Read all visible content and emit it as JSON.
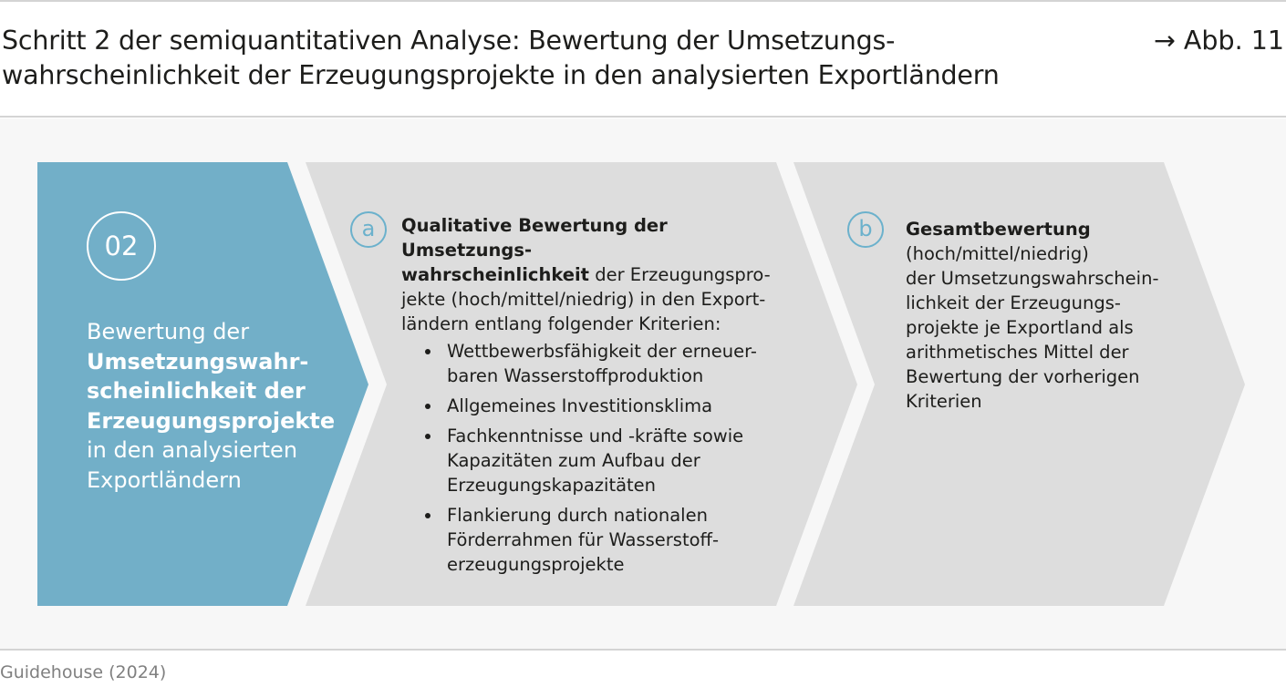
{
  "header": {
    "title_line1": "Schritt 2 der semiquantitativen Analyse: Bewertung der Umsetzungs-",
    "title_line2": "wahrscheinlichkeit der Erzeugungsprojekte in den analysierten Exportländern",
    "figure_ref": "→ Abb. 11"
  },
  "step": {
    "number": "02",
    "text_pre": "Bewertung der",
    "text_bold_1": "Umsetzungswahr-",
    "text_bold_2": "scheinlichkeit der",
    "text_bold_3": "Erzeugungsprojekte",
    "text_post_1": "in den analysierten",
    "text_post_2": "Exportländern"
  },
  "panel_a": {
    "letter": "a",
    "bold_1": "Qualitative Bewertung der Umsetzungs-",
    "bold_2": "wahrscheinlichkeit",
    "rest_1": " der Erzeugungspro-",
    "rest_2": "jekte (hoch/mittel/niedrig) in den Export-",
    "rest_3": "ländern entlang folgender Kriterien:",
    "criteria": [
      {
        "line1": "Wettbewerbsfähigkeit der erneuer-",
        "line2": "baren Wasserstoffproduktion",
        "line3": ""
      },
      {
        "line1": "Allgemeines Investitionsklima",
        "line2": "",
        "line3": ""
      },
      {
        "line1": "Fachkenntnisse und -kräfte sowie",
        "line2": "Kapazitäten zum Aufbau der",
        "line3": "Erzeugungskapazitäten"
      },
      {
        "line1": "Flankierung durch nationalen",
        "line2": "Förderrahmen für Wasserstoff-",
        "line3": "erzeugungsprojekte"
      }
    ]
  },
  "panel_b": {
    "letter": "b",
    "bold": "Gesamtbewertung",
    "lines": [
      "(hoch/mittel/niedrig)",
      "der Umsetzungswahrschein-",
      "lichkeit der Erzeugungs-",
      "projekte je Exportland als",
      "arithmetisches Mittel der",
      "Bewertung der vorherigen",
      "Kriterien"
    ]
  },
  "source": "Guidehouse (2024)",
  "colors": {
    "step_blue": "#72afc8",
    "panel_gray": "#dddddd",
    "accent_circle": "#6bb1cc",
    "background": "#f7f7f7"
  }
}
